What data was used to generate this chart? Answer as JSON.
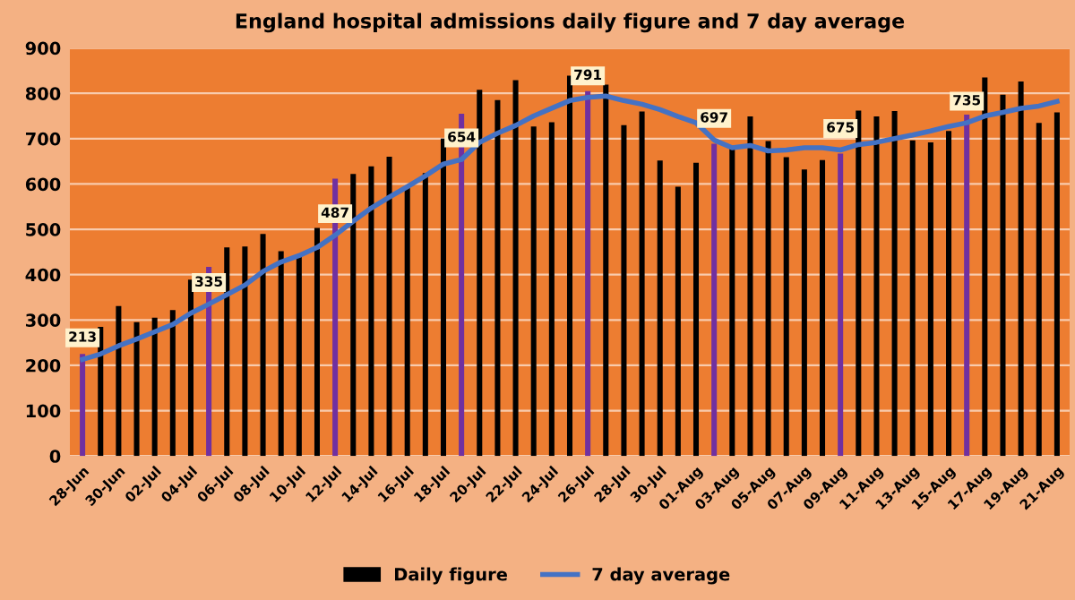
{
  "chart_data": {
    "type": "bar",
    "title": "England hospital admissions daily figure and 7 day average",
    "categories": [
      "28-Jun",
      null,
      "30-Jun",
      null,
      "02-Jul",
      null,
      "04-Jul",
      null,
      "06-Jul",
      null,
      "08-Jul",
      null,
      "10-Jul",
      null,
      "12-Jul",
      null,
      "14-Jul",
      null,
      "16-Jul",
      null,
      "18-Jul",
      null,
      "20-Jul",
      null,
      "22-Jul",
      null,
      "24-Jul",
      null,
      "26-Jul",
      null,
      "28-Jul",
      null,
      "30-Jul",
      null,
      "01-Aug",
      null,
      "03-Aug",
      null,
      "05-Aug",
      null,
      "07-Aug",
      null,
      "09-Aug",
      null,
      "11-Aug",
      null,
      "13-Aug",
      null,
      "15-Aug",
      null,
      "17-Aug",
      null,
      "19-Aug",
      null,
      "21-Aug"
    ],
    "series": [
      {
        "name": "Daily figure",
        "color": "#000000",
        "colors": [
          "#7030a0",
          "#000000",
          "#000000",
          "#000000",
          "#000000",
          "#000000",
          "#000000",
          "#7030a0",
          "#000000",
          "#000000",
          "#000000",
          "#000000",
          "#000000",
          "#000000",
          "#7030a0",
          "#000000",
          "#000000",
          "#000000",
          "#000000",
          "#000000",
          "#000000",
          "#7030a0",
          "#000000",
          "#000000",
          "#000000",
          "#000000",
          "#000000",
          "#000000",
          "#7030a0",
          "#000000",
          "#000000",
          "#000000",
          "#000000",
          "#000000",
          "#000000",
          "#7030a0",
          "#000000",
          "#000000",
          "#000000",
          "#000000",
          "#000000",
          "#000000",
          "#7030a0",
          "#000000",
          "#000000",
          "#000000",
          "#000000",
          "#000000",
          "#000000",
          "#7030a0",
          "#000000",
          "#000000",
          "#000000",
          "#000000",
          "#000000"
        ],
        "values": [
          225,
          285,
          331,
          295,
          305,
          322,
          389,
          417,
          460,
          462,
          490,
          452,
          443,
          503,
          612,
          622,
          639,
          660,
          594,
          624,
          700,
          755,
          808,
          785,
          829,
          727,
          736,
          839,
          805,
          819,
          730,
          760,
          652,
          594,
          647,
          689,
          679,
          749,
          695,
          659,
          632,
          653,
          667,
          762,
          749,
          761,
          696,
          692,
          717,
          753,
          835,
          797,
          826,
          735,
          758
        ]
      },
      {
        "name": "7 day average",
        "type": "line",
        "color": "#4472c4",
        "values": [
          213,
          225,
          243,
          258,
          274,
          290,
          315,
          335,
          356,
          377,
          407,
          428,
          442,
          460,
          487,
          518,
          547,
          571,
          594,
          618,
          644,
          654,
          692,
          712,
          729,
          750,
          767,
          784,
          791,
          794,
          784,
          776,
          764,
          749,
          735,
          697,
          680,
          685,
          673,
          675,
          680,
          680,
          675,
          687,
          692,
          700,
          708,
          717,
          727,
          735,
          750,
          758,
          767,
          772,
          782
        ],
        "value_labels": [
          "213",
          null,
          null,
          null,
          null,
          null,
          null,
          "335",
          null,
          null,
          null,
          null,
          null,
          null,
          "487",
          null,
          null,
          null,
          null,
          null,
          null,
          "654",
          null,
          null,
          null,
          null,
          null,
          null,
          "791",
          null,
          null,
          null,
          null,
          null,
          null,
          "697",
          null,
          null,
          null,
          null,
          null,
          null,
          "675",
          null,
          null,
          null,
          null,
          null,
          null,
          "735",
          null,
          null,
          null,
          null,
          null
        ]
      }
    ],
    "ylim": [
      0,
      900
    ],
    "yticks": [
      0,
      100,
      200,
      300,
      400,
      500,
      600,
      700,
      800,
      900
    ],
    "grid": "y",
    "legend": "bottom"
  }
}
